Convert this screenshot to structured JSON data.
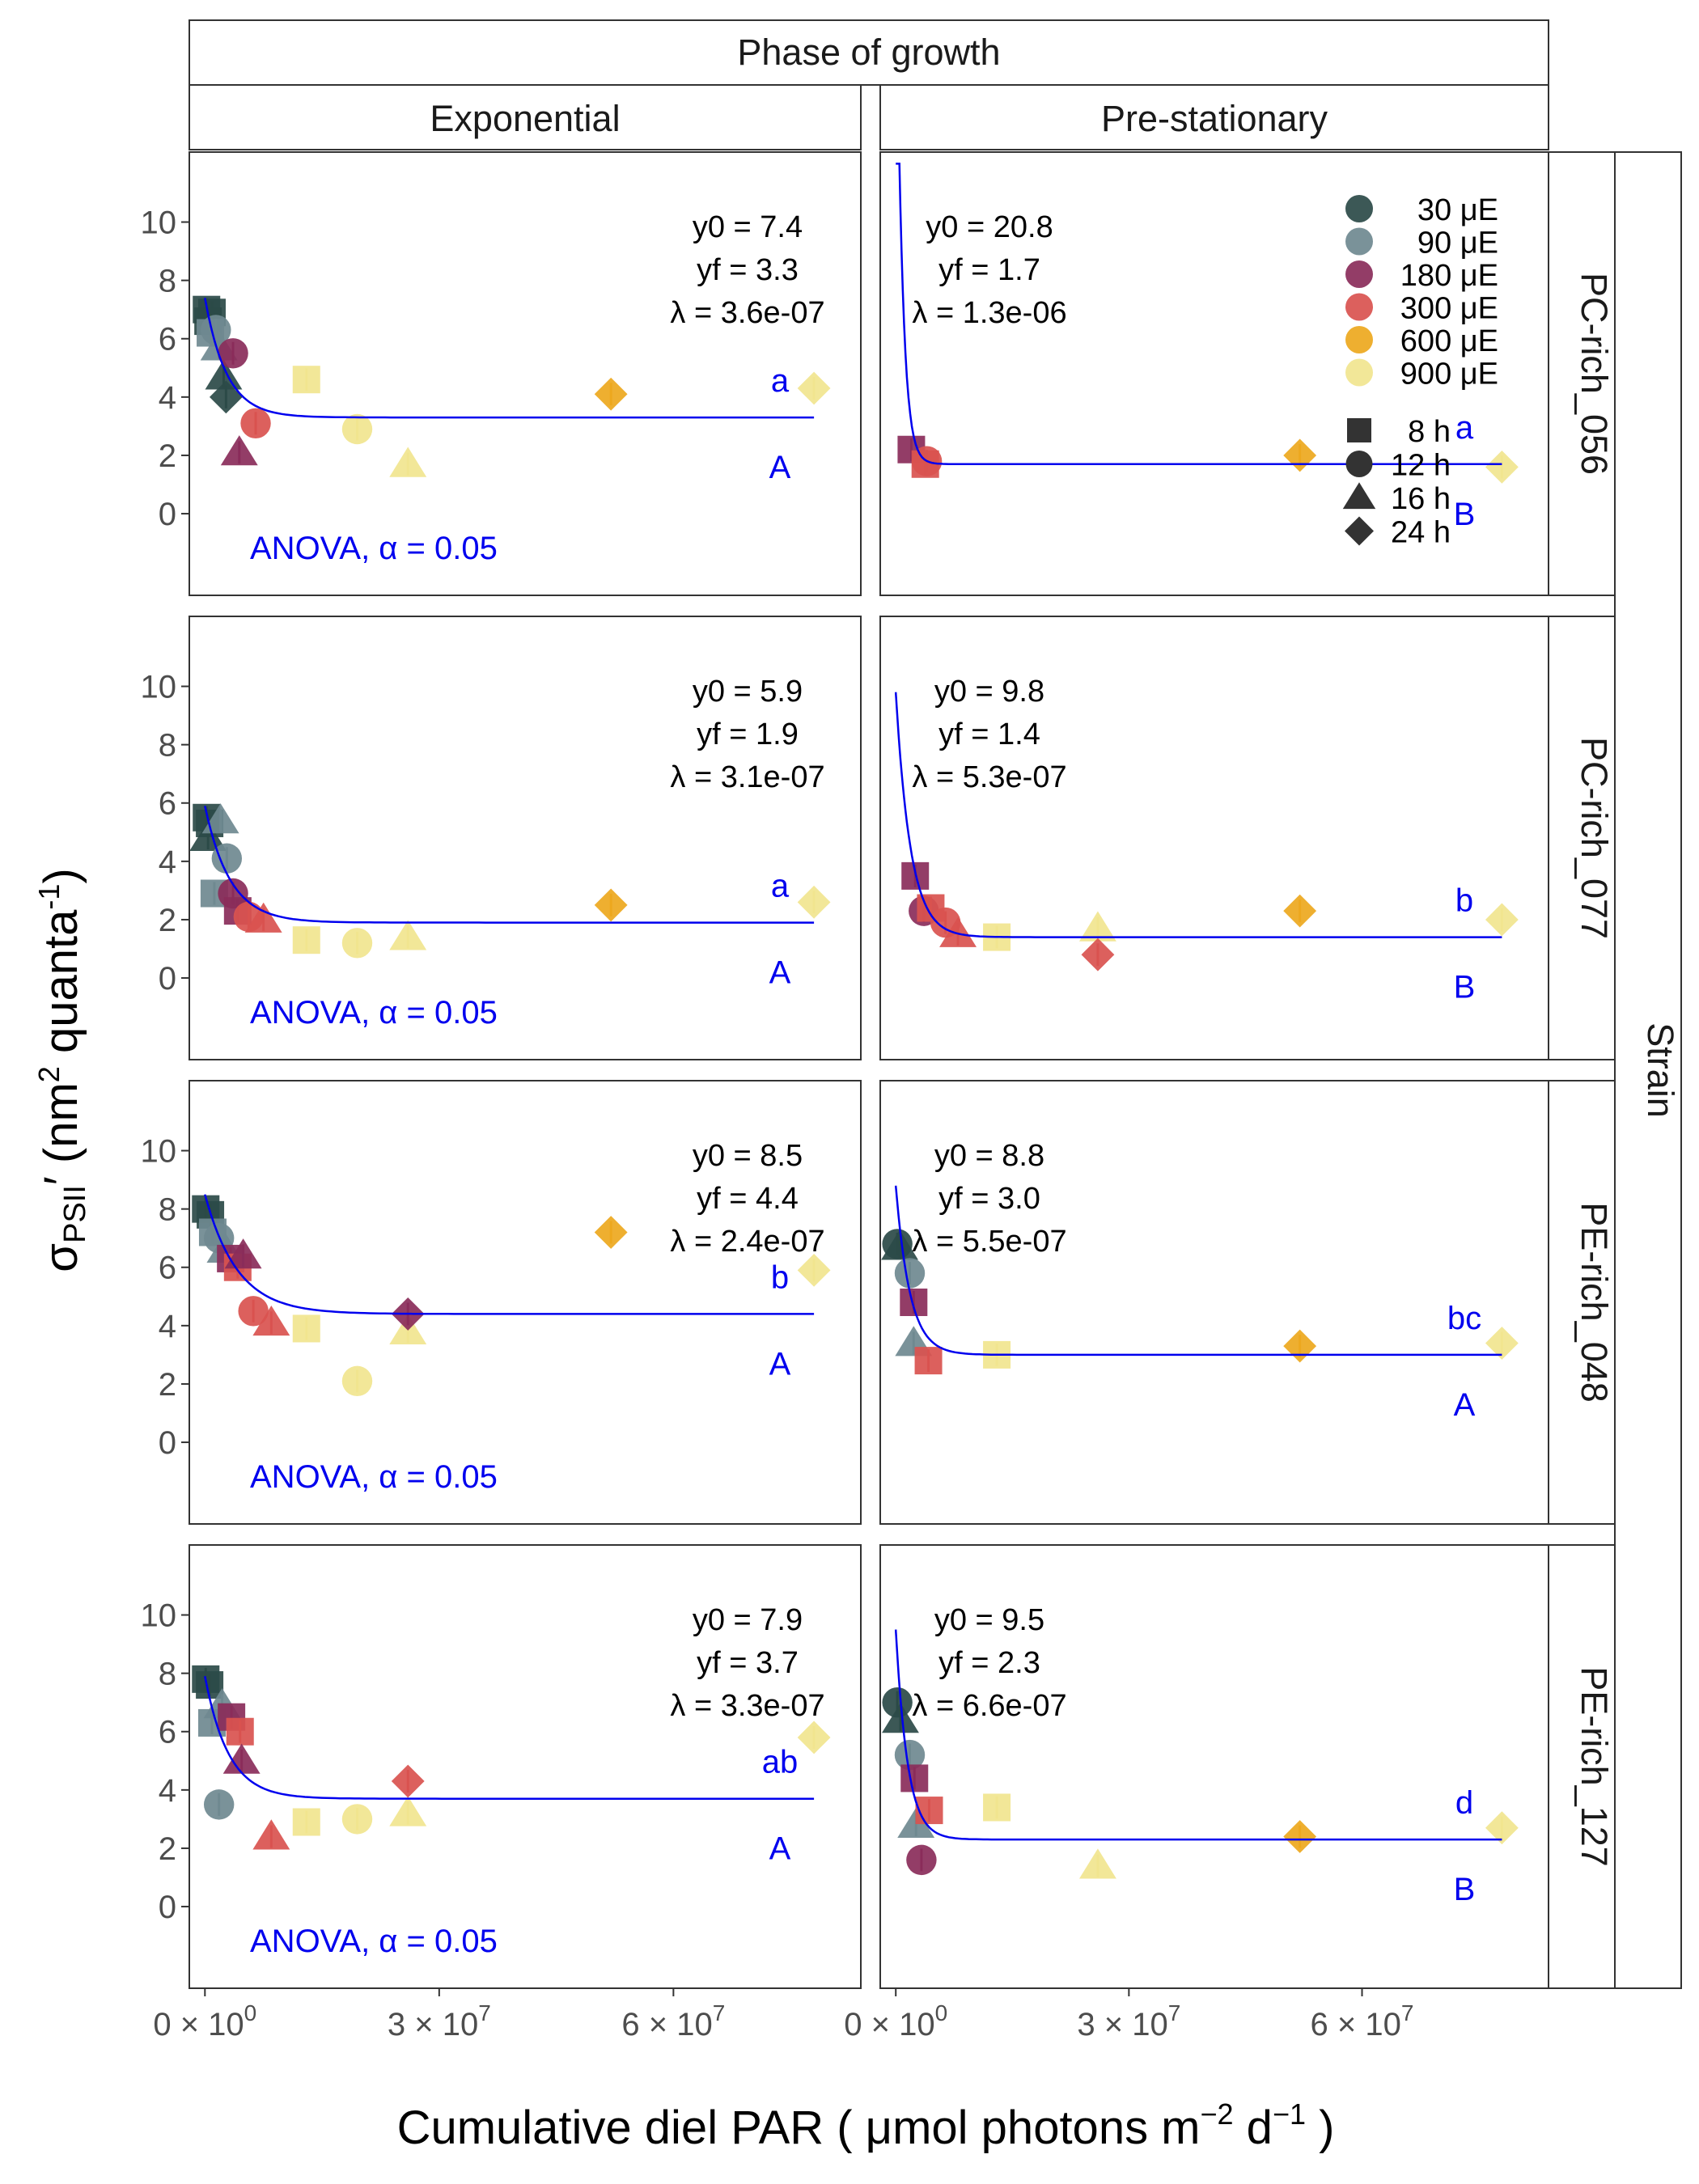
{
  "header": {
    "title": "Phase of growth",
    "columns": [
      "Exponential",
      "Pre-stationary"
    ]
  },
  "right_strip": {
    "title": "Strain",
    "rows": [
      "PC-rich_056",
      "PC-rich_077",
      "PE-rich_048",
      "PE-rich_127"
    ]
  },
  "axes": {
    "ylabel_symbol": "σ",
    "ylabel_sub": "PSII",
    "ylabel_rest": "′ (nm",
    "ylabel_sup2": "2",
    "ylabel_q": " quanta",
    "ylabel_supm1": "-1",
    "ylabel_close": ")",
    "xlabel_a": "Cumulative diel PAR ( μmol photons  m",
    "xlabel_sup_a": "−2",
    "xlabel_b": "  d",
    "xlabel_sup_b": "−1",
    "xlabel_c": " )",
    "y_ticks": [
      "0",
      "2",
      "4",
      "6",
      "8",
      "10"
    ],
    "x_tick_labels": [
      {
        "mant": "0 × 10",
        "exp": "0"
      },
      {
        "mant": "3 × 10",
        "exp": "7"
      },
      {
        "mant": "6 × 10",
        "exp": "7"
      }
    ]
  },
  "legend": {
    "light_entries": [
      {
        "label": "30 μE",
        "color": "#2b4a48"
      },
      {
        "label": "90 μE",
        "color": "#6f8990"
      },
      {
        "label": "180 μE",
        "color": "#8a2c5a"
      },
      {
        "label": "300 μE",
        "color": "#d9524f"
      },
      {
        "label": "600 μE",
        "color": "#eda81e"
      },
      {
        "label": "900 μE",
        "color": "#f1e58f"
      }
    ],
    "shape_entries": [
      {
        "label": "8 h",
        "shape": "square"
      },
      {
        "label": "12 h",
        "shape": "circle"
      },
      {
        "label": "16 h",
        "shape": "triangle"
      },
      {
        "label": "24 h",
        "shape": "diamond"
      }
    ]
  },
  "colors": {
    "fit_line": "#0000ee",
    "annotation_blue": "#0000ee"
  },
  "chart_data": {
    "type": "scatter",
    "facet_rows": "Strain",
    "facet_cols": "Phase of growth",
    "xlim": [
      -2000000,
      84000000
    ],
    "ylim": [
      -2.8,
      12.4
    ],
    "panels": [
      {
        "row": "PC-rich_056",
        "col": "Exponential",
        "fit": {
          "y0": 7.4,
          "yf": 3.3,
          "lambda": 3.6e-07
        },
        "stats": [
          "y0 = 7.4",
          "yf = 3.3",
          "λ = 3.6e-07"
        ],
        "letter_lower": "a",
        "letter_upper": "A",
        "anova": "ANOVA, α = 0.05",
        "points": [
          {
            "x": 200000,
            "y": 7.0,
            "light": "30 μE",
            "shape": "square"
          },
          {
            "x": 900000,
            "y": 6.9,
            "light": "30 μE",
            "shape": "square"
          },
          {
            "x": 400000,
            "y": 6.6,
            "light": "30 μE",
            "shape": "square"
          },
          {
            "x": 700000,
            "y": 6.2,
            "light": "90 μE",
            "shape": "square"
          },
          {
            "x": 1400000,
            "y": 6.3,
            "light": "90 μE",
            "shape": "circle"
          },
          {
            "x": 1800000,
            "y": 5.7,
            "light": "90 μE",
            "shape": "triangle"
          },
          {
            "x": 2400000,
            "y": 4.7,
            "light": "30 μE",
            "shape": "triangle"
          },
          {
            "x": 2700000,
            "y": 4.0,
            "light": "30 μE",
            "shape": "diamond"
          },
          {
            "x": 3600000,
            "y": 5.5,
            "light": "180 μE",
            "shape": "circle"
          },
          {
            "x": 4400000,
            "y": 2.1,
            "light": "180 μE",
            "shape": "triangle"
          },
          {
            "x": 6500000,
            "y": 3.1,
            "light": "300 μE",
            "shape": "circle"
          },
          {
            "x": 13000000,
            "y": 4.6,
            "light": "900 μE",
            "shape": "square"
          },
          {
            "x": 19500000,
            "y": 2.9,
            "light": "900 μE",
            "shape": "circle"
          },
          {
            "x": 26000000,
            "y": 1.7,
            "light": "900 μE",
            "shape": "triangle"
          },
          {
            "x": 52000000,
            "y": 4.1,
            "light": "600 μE",
            "shape": "diamond"
          },
          {
            "x": 78000000,
            "y": 4.3,
            "light": "900 μE",
            "shape": "diamond"
          }
        ]
      },
      {
        "row": "PC-rich_056",
        "col": "Pre-stationary",
        "fit": {
          "y0": 20.8,
          "yf": 1.7,
          "lambda": 1.3e-06
        },
        "stats": [
          "y0 = 20.8",
          "yf = 1.7",
          "λ = 1.3e-06"
        ],
        "letter_lower": "a",
        "letter_upper": "B",
        "anova": "",
        "points": [
          {
            "x": 2000000,
            "y": 2.2,
            "light": "180 μE",
            "shape": "square"
          },
          {
            "x": 3800000,
            "y": 1.7,
            "light": "300 μE",
            "shape": "square"
          },
          {
            "x": 4000000,
            "y": 1.8,
            "light": "300 μE",
            "shape": "circle"
          },
          {
            "x": 52000000,
            "y": 2.0,
            "light": "600 μE",
            "shape": "diamond"
          },
          {
            "x": 78000000,
            "y": 1.6,
            "light": "900 μE",
            "shape": "diamond"
          }
        ]
      },
      {
        "row": "PC-rich_077",
        "col": "Exponential",
        "fit": {
          "y0": 5.9,
          "yf": 1.9,
          "lambda": 3.1e-07
        },
        "stats": [
          "y0 = 5.9",
          "yf = 1.9",
          "λ = 3.1e-07"
        ],
        "letter_lower": "a",
        "letter_upper": "A",
        "anova": "ANOVA, α = 0.05",
        "points": [
          {
            "x": 200000,
            "y": 5.5,
            "light": "30 μE",
            "shape": "square"
          },
          {
            "x": 600000,
            "y": 5.3,
            "light": "30 μE",
            "shape": "square"
          },
          {
            "x": 400000,
            "y": 4.8,
            "light": "30 μE",
            "shape": "triangle"
          },
          {
            "x": 1200000,
            "y": 2.9,
            "light": "90 μE",
            "shape": "square"
          },
          {
            "x": 2000000,
            "y": 5.4,
            "light": "90 μE",
            "shape": "triangle"
          },
          {
            "x": 2800000,
            "y": 4.1,
            "light": "90 μE",
            "shape": "circle"
          },
          {
            "x": 3600000,
            "y": 2.9,
            "light": "180 μE",
            "shape": "circle"
          },
          {
            "x": 4200000,
            "y": 2.3,
            "light": "180 μE",
            "shape": "square"
          },
          {
            "x": 5600000,
            "y": 2.1,
            "light": "300 μE",
            "shape": "circle"
          },
          {
            "x": 7500000,
            "y": 2.0,
            "light": "300 μE",
            "shape": "triangle"
          },
          {
            "x": 13000000,
            "y": 1.3,
            "light": "900 μE",
            "shape": "square"
          },
          {
            "x": 19500000,
            "y": 1.2,
            "light": "900 μE",
            "shape": "circle"
          },
          {
            "x": 26000000,
            "y": 1.4,
            "light": "900 μE",
            "shape": "triangle"
          },
          {
            "x": 52000000,
            "y": 2.5,
            "light": "600 μE",
            "shape": "diamond"
          },
          {
            "x": 78000000,
            "y": 2.6,
            "light": "900 μE",
            "shape": "diamond"
          }
        ]
      },
      {
        "row": "PC-rich_077",
        "col": "Pre-stationary",
        "fit": {
          "y0": 9.8,
          "yf": 1.4,
          "lambda": 5.3e-07
        },
        "stats": [
          "y0 = 9.8",
          "yf = 1.4",
          "λ = 5.3e-07"
        ],
        "letter_lower": "b",
        "letter_upper": "B",
        "anova": "",
        "points": [
          {
            "x": 2500000,
            "y": 3.5,
            "light": "180 μE",
            "shape": "square"
          },
          {
            "x": 3600000,
            "y": 2.3,
            "light": "180 μE",
            "shape": "circle"
          },
          {
            "x": 4500000,
            "y": 2.4,
            "light": "300 μE",
            "shape": "square"
          },
          {
            "x": 6400000,
            "y": 1.9,
            "light": "300 μE",
            "shape": "circle"
          },
          {
            "x": 8000000,
            "y": 1.5,
            "light": "300 μE",
            "shape": "triangle"
          },
          {
            "x": 13000000,
            "y": 1.4,
            "light": "900 μE",
            "shape": "square"
          },
          {
            "x": 26000000,
            "y": 1.7,
            "light": "900 μE",
            "shape": "triangle"
          },
          {
            "x": 26000000,
            "y": 0.8,
            "light": "300 μE",
            "shape": "diamond"
          },
          {
            "x": 52000000,
            "y": 2.3,
            "light": "600 μE",
            "shape": "diamond"
          },
          {
            "x": 78000000,
            "y": 2.0,
            "light": "900 μE",
            "shape": "diamond"
          }
        ]
      },
      {
        "row": "PE-rich_048",
        "col": "Exponential",
        "fit": {
          "y0": 8.5,
          "yf": 4.4,
          "lambda": 2.4e-07
        },
        "stats": [
          "y0 = 8.5",
          "yf = 4.4",
          "λ = 2.4e-07"
        ],
        "letter_lower": "b",
        "letter_upper": "A",
        "anova": "ANOVA, α = 0.05",
        "points": [
          {
            "x": 100000,
            "y": 8.0,
            "light": "30 μE",
            "shape": "square"
          },
          {
            "x": 700000,
            "y": 7.8,
            "light": "30 μE",
            "shape": "square"
          },
          {
            "x": 1000000,
            "y": 7.2,
            "light": "90 μE",
            "shape": "square"
          },
          {
            "x": 1800000,
            "y": 7.0,
            "light": "90 μE",
            "shape": "circle"
          },
          {
            "x": 2600000,
            "y": 6.6,
            "light": "90 μE",
            "shape": "triangle"
          },
          {
            "x": 3300000,
            "y": 6.3,
            "light": "180 μE",
            "shape": "square"
          },
          {
            "x": 4200000,
            "y": 6.0,
            "light": "300 μE",
            "shape": "square"
          },
          {
            "x": 4900000,
            "y": 6.4,
            "light": "180 μE",
            "shape": "triangle"
          },
          {
            "x": 6200000,
            "y": 4.5,
            "light": "300 μE",
            "shape": "circle"
          },
          {
            "x": 8500000,
            "y": 4.1,
            "light": "300 μE",
            "shape": "triangle"
          },
          {
            "x": 13000000,
            "y": 3.9,
            "light": "900 μE",
            "shape": "square"
          },
          {
            "x": 19500000,
            "y": 2.1,
            "light": "900 μE",
            "shape": "circle"
          },
          {
            "x": 26000000,
            "y": 3.8,
            "light": "900 μE",
            "shape": "triangle"
          },
          {
            "x": 26000000,
            "y": 4.4,
            "light": "180 μE",
            "shape": "diamond"
          },
          {
            "x": 52000000,
            "y": 7.2,
            "light": "600 μE",
            "shape": "diamond"
          },
          {
            "x": 78000000,
            "y": 5.9,
            "light": "900 μE",
            "shape": "diamond"
          }
        ]
      },
      {
        "row": "PE-rich_048",
        "col": "Pre-stationary",
        "fit": {
          "y0": 8.8,
          "yf": 3.0,
          "lambda": 5.5e-07
        },
        "stats": [
          "y0 = 8.8",
          "yf = 3.0",
          "λ = 5.5e-07"
        ],
        "letter_lower": "bc",
        "letter_upper": "A",
        "anova": "",
        "points": [
          {
            "x": 200000,
            "y": 6.8,
            "light": "30 μE",
            "shape": "circle"
          },
          {
            "x": 500000,
            "y": 6.7,
            "light": "30 μE",
            "shape": "triangle"
          },
          {
            "x": 1800000,
            "y": 5.8,
            "light": "90 μE",
            "shape": "circle"
          },
          {
            "x": 2300000,
            "y": 4.8,
            "light": "180 μE",
            "shape": "square"
          },
          {
            "x": 2300000,
            "y": 3.4,
            "light": "90 μE",
            "shape": "triangle"
          },
          {
            "x": 4200000,
            "y": 2.8,
            "light": "300 μE",
            "shape": "square"
          },
          {
            "x": 13000000,
            "y": 3.0,
            "light": "900 μE",
            "shape": "square"
          },
          {
            "x": 52000000,
            "y": 3.3,
            "light": "600 μE",
            "shape": "diamond"
          },
          {
            "x": 78000000,
            "y": 3.4,
            "light": "900 μE",
            "shape": "diamond"
          }
        ]
      },
      {
        "row": "PE-rich_127",
        "col": "Exponential",
        "fit": {
          "y0": 7.9,
          "yf": 3.7,
          "lambda": 3.3e-07
        },
        "stats": [
          "y0 = 7.9",
          "yf = 3.7",
          "λ = 3.3e-07"
        ],
        "letter_lower": "ab",
        "letter_upper": "A",
        "anova": "ANOVA, α = 0.05",
        "points": [
          {
            "x": 100000,
            "y": 7.8,
            "light": "30 μE",
            "shape": "square"
          },
          {
            "x": 600000,
            "y": 7.6,
            "light": "30 μE",
            "shape": "square"
          },
          {
            "x": 900000,
            "y": 6.3,
            "light": "90 μE",
            "shape": "square"
          },
          {
            "x": 1800000,
            "y": 3.5,
            "light": "90 μE",
            "shape": "circle"
          },
          {
            "x": 2200000,
            "y": 6.9,
            "light": "90 μE",
            "shape": "triangle"
          },
          {
            "x": 3400000,
            "y": 6.5,
            "light": "180 μE",
            "shape": "square"
          },
          {
            "x": 4500000,
            "y": 6.0,
            "light": "300 μE",
            "shape": "square"
          },
          {
            "x": 4700000,
            "y": 5.0,
            "light": "180 μE",
            "shape": "triangle"
          },
          {
            "x": 8500000,
            "y": 2.4,
            "light": "300 μE",
            "shape": "triangle"
          },
          {
            "x": 13000000,
            "y": 2.9,
            "light": "900 μE",
            "shape": "square"
          },
          {
            "x": 19500000,
            "y": 3.0,
            "light": "900 μE",
            "shape": "circle"
          },
          {
            "x": 26000000,
            "y": 3.2,
            "light": "900 μE",
            "shape": "triangle"
          },
          {
            "x": 26000000,
            "y": 4.3,
            "light": "300 μE",
            "shape": "diamond"
          },
          {
            "x": 78000000,
            "y": 5.8,
            "light": "900 μE",
            "shape": "diamond"
          }
        ]
      },
      {
        "row": "PE-rich_127",
        "col": "Pre-stationary",
        "fit": {
          "y0": 9.5,
          "yf": 2.3,
          "lambda": 6.6e-07
        },
        "stats": [
          "y0 = 9.5",
          "yf = 2.3",
          "λ = 6.6e-07"
        ],
        "letter_lower": "d",
        "letter_upper": "B",
        "anova": "",
        "points": [
          {
            "x": 200000,
            "y": 7.0,
            "light": "30 μE",
            "shape": "circle"
          },
          {
            "x": 600000,
            "y": 6.4,
            "light": "30 μE",
            "shape": "triangle"
          },
          {
            "x": 1800000,
            "y": 5.2,
            "light": "90 μE",
            "shape": "circle"
          },
          {
            "x": 2400000,
            "y": 4.4,
            "light": "180 μE",
            "shape": "square"
          },
          {
            "x": 2600000,
            "y": 2.8,
            "light": "90 μE",
            "shape": "triangle"
          },
          {
            "x": 3300000,
            "y": 1.6,
            "light": "180 μE",
            "shape": "circle"
          },
          {
            "x": 4300000,
            "y": 3.3,
            "light": "300 μE",
            "shape": "square"
          },
          {
            "x": 13000000,
            "y": 3.4,
            "light": "900 μE",
            "shape": "square"
          },
          {
            "x": 26000000,
            "y": 1.4,
            "light": "900 μE",
            "shape": "triangle"
          },
          {
            "x": 52000000,
            "y": 2.4,
            "light": "600 μE",
            "shape": "diamond"
          },
          {
            "x": 78000000,
            "y": 2.7,
            "light": "900 μE",
            "shape": "diamond"
          }
        ]
      }
    ]
  }
}
